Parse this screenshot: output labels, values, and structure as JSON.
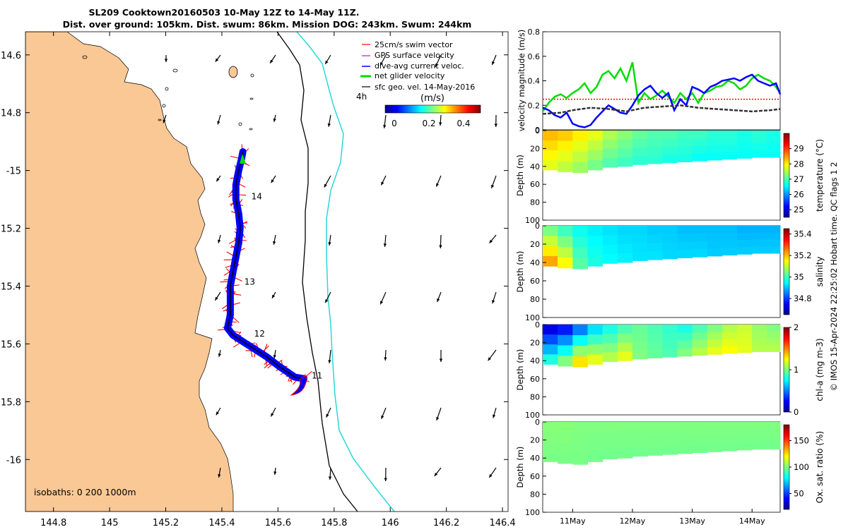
{
  "header": {
    "line1": "SL209 Cooktown20160503 10-May 12Z to 14-May 11Z.",
    "line2": "Dist. over ground: 105km. Dist. swum: 86km. Mission DOG: 243km. Swum: 244km"
  },
  "colors": {
    "land": "#f9c894",
    "swim": "#ff0000",
    "gps": "#e000e0",
    "current": "#0000ff",
    "net": "#00dd00",
    "geo": "#000000",
    "isobath200": "#000000",
    "isobath1000": "#29d9d9"
  },
  "map": {
    "xlim": [
      144.7,
      146.42
    ],
    "ylim": [
      -16.18,
      -14.52
    ],
    "xticks": [
      144.8,
      145,
      145.2,
      145.4,
      145.6,
      145.8,
      146,
      146.2,
      146.4
    ],
    "yticks": [
      -14.6,
      -14.8,
      -15,
      -15.2,
      -15.4,
      -15.6,
      -15.8,
      -16
    ],
    "ytick_labels": [
      "14.6",
      "14.8",
      "-15",
      "15.2",
      "15.4",
      "15.6",
      "15.8",
      "-16"
    ],
    "legend": [
      {
        "key": "swim",
        "label": "25cm/s swim vector"
      },
      {
        "key": "gps",
        "label": "GPS surface velocity"
      },
      {
        "key": "current",
        "label": "dive-avg current veloc."
      },
      {
        "key": "net",
        "label": "net glider velocity"
      },
      {
        "key": "geo",
        "label": "sfc geo. vel. 14-May-2016"
      }
    ],
    "time_label": "4h",
    "colorbar_unit": "(m/s)",
    "colorbar_ticks": [
      "0",
      "0.2",
      "0.4"
    ],
    "colorbar_range": [
      0,
      0.5
    ],
    "isobath_text": "isobaths: 0   200  1000m",
    "track": [
      [
        145.69,
        -15.72
      ],
      [
        145.66,
        -15.715
      ],
      [
        145.63,
        -15.695
      ],
      [
        145.6,
        -15.675
      ],
      [
        145.56,
        -15.645
      ],
      [
        145.52,
        -15.62
      ],
      [
        145.48,
        -15.595
      ],
      [
        145.44,
        -15.57
      ],
      [
        145.42,
        -15.545
      ],
      [
        145.43,
        -15.5
      ],
      [
        145.43,
        -15.45
      ],
      [
        145.43,
        -15.4
      ],
      [
        145.44,
        -15.35
      ],
      [
        145.45,
        -15.3
      ],
      [
        145.46,
        -15.25
      ],
      [
        145.465,
        -15.2
      ],
      [
        145.46,
        -15.15
      ],
      [
        145.45,
        -15.1
      ],
      [
        145.45,
        -15.05
      ],
      [
        145.46,
        -15
      ],
      [
        145.47,
        -14.96
      ],
      [
        145.475,
        -14.935
      ]
    ],
    "day_labels": [
      {
        "text": "11",
        "lon": 145.72,
        "lat": -15.72
      },
      {
        "text": "12",
        "lon": 145.515,
        "lat": -15.575
      },
      {
        "text": "13",
        "lon": 145.48,
        "lat": -15.395
      },
      {
        "text": "14",
        "lon": 145.505,
        "lat": -15.1
      }
    ]
  },
  "chart_data": [
    {
      "type": "line",
      "title": "",
      "ylabel": "velocity magnitude (m/s)",
      "ylim": [
        0,
        0.8
      ],
      "yticks": [
        0,
        0.2,
        0.4,
        0.6,
        0.8
      ],
      "xlim": [
        10.5,
        14.47
      ],
      "series": [
        {
          "name": "25cm/s swim vector",
          "color": "#ff0000",
          "x": [
            10.5,
            14.47
          ],
          "y": [
            0.25,
            0.25
          ]
        },
        {
          "name": "net glider velocity",
          "color": "#00dd00",
          "x": [
            10.5,
            10.6,
            10.7,
            10.8,
            10.9,
            11.0,
            11.1,
            11.2,
            11.3,
            11.4,
            11.5,
            11.6,
            11.7,
            11.8,
            11.9,
            12.0,
            12.1,
            12.2,
            12.3,
            12.4,
            12.5,
            12.6,
            12.7,
            12.8,
            12.9,
            13.0,
            13.1,
            13.2,
            13.3,
            13.4,
            13.5,
            13.6,
            13.7,
            13.8,
            13.9,
            14.0,
            14.1,
            14.2,
            14.3,
            14.4,
            14.47
          ],
          "y": [
            0.15,
            0.22,
            0.27,
            0.29,
            0.26,
            0.3,
            0.33,
            0.38,
            0.3,
            0.35,
            0.45,
            0.48,
            0.42,
            0.5,
            0.4,
            0.55,
            0.22,
            0.3,
            0.25,
            0.28,
            0.32,
            0.27,
            0.22,
            0.3,
            0.25,
            0.3,
            0.22,
            0.3,
            0.32,
            0.35,
            0.36,
            0.4,
            0.38,
            0.33,
            0.36,
            0.42,
            0.45,
            0.42,
            0.4,
            0.35,
            0.3
          ]
        },
        {
          "name": "dive-avg current veloc.",
          "color": "#0000ff",
          "x": [
            10.5,
            10.6,
            10.7,
            10.8,
            10.9,
            11.0,
            11.1,
            11.2,
            11.3,
            11.4,
            11.5,
            11.6,
            11.7,
            11.8,
            11.9,
            12.0,
            12.1,
            12.2,
            12.3,
            12.4,
            12.5,
            12.6,
            12.7,
            12.8,
            12.9,
            13.0,
            13.1,
            13.2,
            13.3,
            13.4,
            13.5,
            13.6,
            13.7,
            13.8,
            13.9,
            14.0,
            14.1,
            14.2,
            14.3,
            14.4,
            14.47
          ],
          "y": [
            0.18,
            0.16,
            0.12,
            0.1,
            0.14,
            0.05,
            0.03,
            0.02,
            0.04,
            0.1,
            0.15,
            0.2,
            0.17,
            0.14,
            0.13,
            0.2,
            0.28,
            0.33,
            0.36,
            0.3,
            0.26,
            0.3,
            0.16,
            0.25,
            0.2,
            0.35,
            0.33,
            0.3,
            0.35,
            0.37,
            0.4,
            0.41,
            0.42,
            0.4,
            0.43,
            0.45,
            0.4,
            0.38,
            0.36,
            0.38,
            0.29
          ]
        },
        {
          "name": "sfc geo. vel.",
          "color": "#333333",
          "x": [
            10.5,
            10.8,
            11.0,
            11.3,
            11.6,
            11.9,
            12.2,
            12.5,
            12.8,
            13.1,
            13.4,
            13.7,
            14.0,
            14.3,
            14.47
          ],
          "y": [
            0.13,
            0.14,
            0.16,
            0.18,
            0.17,
            0.15,
            0.18,
            0.19,
            0.2,
            0.18,
            0.17,
            0.16,
            0.15,
            0.16,
            0.17
          ]
        }
      ]
    },
    {
      "type": "heatmap",
      "variable": "temperature (°C)",
      "ylabel": "Depth (m)",
      "yticks": [
        0,
        20,
        40,
        60,
        80,
        100
      ],
      "ylim": [
        0,
        100
      ],
      "clim": [
        24.5,
        30
      ],
      "cticks": [
        25,
        26,
        27,
        28,
        29
      ],
      "day_starts": [
        10.5,
        10.75,
        11.0,
        11.25,
        11.5,
        11.75,
        12.0,
        12.25,
        12.5,
        12.75,
        13.0,
        13.25,
        13.5,
        13.75,
        14.0,
        14.25
      ],
      "bottom_depth": [
        44,
        46,
        47,
        44,
        41,
        40,
        38,
        37,
        36,
        35,
        34,
        33,
        32,
        31,
        30,
        30
      ],
      "surface_value": [
        28.3,
        28.2,
        28.0,
        27.8,
        27.5,
        27.3,
        27.1,
        27.0,
        27.0,
        26.9,
        26.9,
        26.8,
        26.8,
        26.7,
        26.8,
        26.7
      ],
      "bottom_value": [
        27.8,
        27.6,
        27.4,
        27.2,
        27.0,
        26.9,
        26.8,
        26.8,
        26.7,
        26.7,
        26.6,
        26.6,
        26.6,
        26.6,
        26.6,
        26.6
      ]
    },
    {
      "type": "heatmap",
      "variable": "salinity",
      "ylabel": "Depth (m)",
      "yticks": [
        0,
        20,
        40,
        60,
        80,
        100
      ],
      "ylim": [
        0,
        100
      ],
      "clim": [
        34.65,
        35.45
      ],
      "cticks": [
        34.8,
        35,
        35.2,
        35.4
      ],
      "day_starts": [
        10.5,
        10.75,
        11.0,
        11.25,
        11.5,
        11.75,
        12.0,
        12.25,
        12.5,
        12.75,
        13.0,
        13.25,
        13.5,
        13.75,
        14.0,
        14.25
      ],
      "bottom_depth": [
        44,
        46,
        47,
        44,
        41,
        40,
        38,
        37,
        36,
        35,
        34,
        33,
        32,
        31,
        30,
        30
      ],
      "surface_value": [
        35.05,
        35.0,
        34.96,
        34.94,
        34.93,
        34.92,
        34.92,
        34.91,
        34.91,
        34.9,
        34.9,
        34.9,
        34.9,
        34.89,
        34.89,
        34.89
      ],
      "bottom_value": [
        35.22,
        35.15,
        35.02,
        34.97,
        34.95,
        34.94,
        34.93,
        34.93,
        34.92,
        34.92,
        34.92,
        34.91,
        34.91,
        34.91,
        34.91,
        34.91
      ]
    },
    {
      "type": "heatmap",
      "variable": "chl-a (mg m-3)",
      "ylabel": "Depth (m)",
      "yticks": [
        0,
        20,
        40,
        60,
        80,
        100
      ],
      "ylim": [
        0,
        100
      ],
      "clim": [
        0,
        2
      ],
      "cticks": [
        0,
        1,
        2
      ],
      "day_starts": [
        10.5,
        10.75,
        11.0,
        11.25,
        11.5,
        11.75,
        12.0,
        12.25,
        12.5,
        12.75,
        13.0,
        13.25,
        13.5,
        13.75,
        14.0,
        14.25
      ],
      "bottom_depth": [
        44,
        46,
        47,
        44,
        41,
        40,
        38,
        37,
        36,
        35,
        34,
        33,
        32,
        31,
        30,
        30
      ],
      "surface_value": [
        0.2,
        0.3,
        0.5,
        0.7,
        0.8,
        0.9,
        0.95,
        0.9,
        0.85,
        0.8,
        0.9,
        1.0,
        1.1,
        1.15,
        1.05,
        1.0
      ],
      "bottom_value": [
        0.8,
        1.0,
        1.3,
        1.2,
        1.1,
        1.2,
        1.0,
        0.95,
        0.9,
        1.0,
        1.1,
        1.2,
        1.25,
        1.2,
        1.1,
        1.1
      ]
    },
    {
      "type": "heatmap",
      "variable": "Ox. sat. ratio (%)",
      "ylabel": "Depth (m)",
      "yticks": [
        0,
        20,
        40,
        60,
        80,
        100
      ],
      "ylim": [
        0,
        100
      ],
      "clim": [
        20,
        180
      ],
      "cticks": [
        50,
        100,
        150
      ],
      "day_starts": [
        10.5,
        10.75,
        11.0,
        11.25,
        11.5,
        11.75,
        12.0,
        12.25,
        12.5,
        12.75,
        13.0,
        13.25,
        13.5,
        13.75,
        14.0,
        14.25
      ],
      "bottom_depth": [
        44,
        46,
        47,
        44,
        41,
        40,
        38,
        37,
        36,
        35,
        34,
        33,
        32,
        31,
        30,
        30
      ],
      "surface_value": [
        101,
        101,
        100,
        100,
        100,
        100,
        100,
        100,
        100,
        100,
        100,
        100,
        100,
        100,
        100,
        100
      ],
      "bottom_value": [
        99,
        99,
        99,
        98,
        98,
        98,
        98,
        98,
        98,
        98,
        98,
        98,
        98,
        98,
        98,
        98
      ]
    }
  ],
  "time_axis": {
    "ticks": [
      11,
      12,
      13,
      14
    ],
    "labels": [
      "11May",
      "12May",
      "13May",
      "14May"
    ]
  },
  "credit": "© IMOS 15-Apr-2024 22:25:02 Hobart time. QC flags 1  2"
}
